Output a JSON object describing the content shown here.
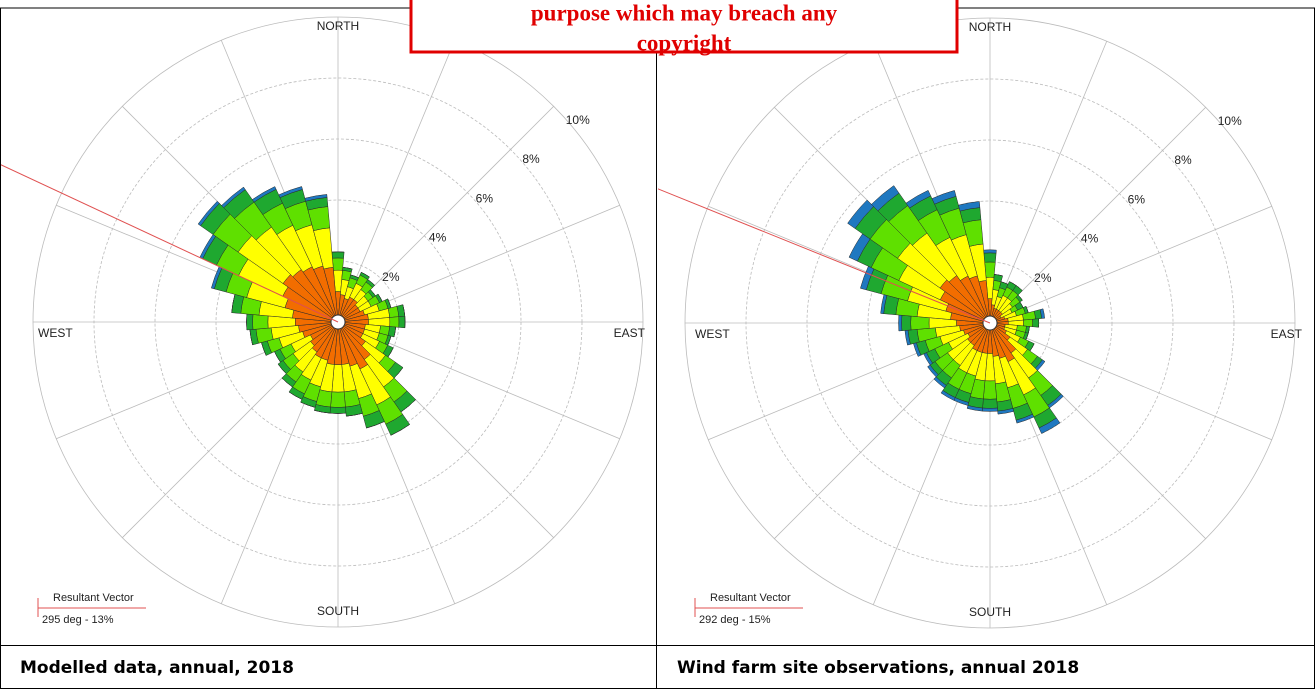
{
  "watermark": [
    "purpose which may breach any",
    "copyright"
  ],
  "chart_data": [
    {
      "type": "wind_rose",
      "caption": "Modelled data, annual, 2018",
      "cardinals": [
        "NORTH",
        "EAST",
        "SOUTH",
        "WEST"
      ],
      "directions": [
        0,
        10,
        20,
        30,
        40,
        50,
        60,
        70,
        80,
        90,
        100,
        110,
        120,
        130,
        140,
        150,
        160,
        170,
        180,
        190,
        200,
        210,
        220,
        230,
        240,
        250,
        260,
        270,
        280,
        290,
        300,
        310,
        320,
        330,
        340,
        350
      ],
      "rlim": [
        0,
        10
      ],
      "rticks": [
        {
          "value": 2,
          "label": "2%"
        },
        {
          "value": 4,
          "label": "4%"
        },
        {
          "value": 6,
          "label": "6%"
        },
        {
          "value": 8,
          "label": "8%"
        },
        {
          "value": 10,
          "label": "10%"
        }
      ],
      "series": [
        {
          "color": "#f26d00",
          "values": [
            1.0,
            0.9,
            0.8,
            0.9,
            0.9,
            0.8,
            0.8,
            0.9,
            1.0,
            1.0,
            0.9,
            0.9,
            0.9,
            1.1,
            1.5,
            1.7,
            1.5,
            1.4,
            1.4,
            1.4,
            1.3,
            1.3,
            1.2,
            1.1,
            1.0,
            1.2,
            1.3,
            1.4,
            1.5,
            1.8,
            2.0,
            2.2,
            2.1,
            2.0,
            1.9,
            1.8
          ]
        },
        {
          "color": "#ffff00",
          "values": [
            0.7,
            0.5,
            0.4,
            0.5,
            0.4,
            0.4,
            0.4,
            0.5,
            0.7,
            0.7,
            0.5,
            0.5,
            0.6,
            0.8,
            1.1,
            1.3,
            1.1,
            0.9,
            0.9,
            0.9,
            0.9,
            0.8,
            0.8,
            0.7,
            0.7,
            0.8,
            0.9,
            0.9,
            1.1,
            1.3,
            1.6,
            1.8,
            1.7,
            1.5,
            1.4,
            1.3
          ]
        },
        {
          "color": "#5fe000",
          "values": [
            0.4,
            0.3,
            0.3,
            0.3,
            0.3,
            0.2,
            0.3,
            0.3,
            0.3,
            0.3,
            0.3,
            0.3,
            0.3,
            0.4,
            0.6,
            0.7,
            0.6,
            0.5,
            0.5,
            0.5,
            0.5,
            0.5,
            0.4,
            0.4,
            0.4,
            0.4,
            0.5,
            0.5,
            0.6,
            0.7,
            0.8,
            1.0,
            1.0,
            0.8,
            0.8,
            0.7
          ]
        },
        {
          "color": "#1fa830",
          "values": [
            0.2,
            0.1,
            0.1,
            0.1,
            0.1,
            0.1,
            0.1,
            0.1,
            0.2,
            0.2,
            0.2,
            0.1,
            0.2,
            0.3,
            0.4,
            0.4,
            0.4,
            0.3,
            0.2,
            0.2,
            0.2,
            0.2,
            0.2,
            0.2,
            0.2,
            0.2,
            0.2,
            0.2,
            0.3,
            0.4,
            0.5,
            0.5,
            0.5,
            0.5,
            0.4,
            0.3
          ]
        },
        {
          "color": "#1f78c0",
          "values": [
            0,
            0,
            0,
            0,
            0,
            0,
            0,
            0,
            0,
            0,
            0,
            0,
            0,
            0,
            0,
            0,
            0,
            0,
            0,
            0,
            0,
            0,
            0,
            0,
            0,
            0,
            0,
            0,
            0,
            0.1,
            0.1,
            0.1,
            0.1,
            0.1,
            0.1,
            0.1
          ]
        }
      ],
      "resultant": {
        "label": "Resultant Vector",
        "direction": 295,
        "magnitude": 13,
        "value_label": "295 deg - 13%"
      }
    },
    {
      "type": "wind_rose",
      "caption": "Wind farm site observations, annual 2018",
      "cardinals": [
        "NORTH",
        "EAST",
        "SOUTH",
        "WEST"
      ],
      "directions": [
        0,
        10,
        20,
        30,
        40,
        50,
        60,
        70,
        80,
        90,
        100,
        110,
        120,
        130,
        140,
        150,
        160,
        170,
        180,
        190,
        200,
        210,
        220,
        230,
        240,
        250,
        260,
        270,
        280,
        290,
        300,
        310,
        320,
        330,
        340,
        350
      ],
      "rlim": [
        0,
        10
      ],
      "rticks": [
        {
          "value": 2,
          "label": "2%"
        },
        {
          "value": 4,
          "label": "4%"
        },
        {
          "value": 6,
          "label": "6%"
        },
        {
          "value": 8,
          "label": "8%"
        },
        {
          "value": 10,
          "label": "10%"
        }
      ],
      "series": [
        {
          "color": "#f26d00",
          "values": [
            0.8,
            0.6,
            0.5,
            0.5,
            0.5,
            0.5,
            0.4,
            0.5,
            0.6,
            0.6,
            0.5,
            0.5,
            0.6,
            0.8,
            1.2,
            1.4,
            1.2,
            1.1,
            1.0,
            1.0,
            1.0,
            1.0,
            0.9,
            0.9,
            0.8,
            0.9,
            1.0,
            1.1,
            1.3,
            1.5,
            1.8,
            2.0,
            1.9,
            1.7,
            1.6,
            1.4
          ]
        },
        {
          "color": "#ffff00",
          "values": [
            0.7,
            0.5,
            0.4,
            0.5,
            0.5,
            0.4,
            0.4,
            0.4,
            0.5,
            0.5,
            0.4,
            0.4,
            0.5,
            0.7,
            1.0,
            1.2,
            1.0,
            0.9,
            0.9,
            0.9,
            0.8,
            0.8,
            0.8,
            0.8,
            0.7,
            0.8,
            0.8,
            0.9,
            1.1,
            1.3,
            1.5,
            1.7,
            1.7,
            1.4,
            1.4,
            1.2
          ]
        },
        {
          "color": "#5fe000",
          "values": [
            0.5,
            0.3,
            0.3,
            0.3,
            0.3,
            0.3,
            0.2,
            0.3,
            0.4,
            0.3,
            0.3,
            0.3,
            0.3,
            0.4,
            0.7,
            0.8,
            0.7,
            0.6,
            0.6,
            0.6,
            0.6,
            0.6,
            0.5,
            0.5,
            0.5,
            0.5,
            0.6,
            0.6,
            0.7,
            0.9,
            1.0,
            1.1,
            1.1,
            1.0,
            0.9,
            0.8
          ]
        },
        {
          "color": "#1fa830",
          "values": [
            0.3,
            0.2,
            0.2,
            0.2,
            0.2,
            0.1,
            0.2,
            0.1,
            0.2,
            0.2,
            0.1,
            0.1,
            0.2,
            0.2,
            0.4,
            0.4,
            0.4,
            0.3,
            0.3,
            0.3,
            0.3,
            0.3,
            0.3,
            0.2,
            0.3,
            0.3,
            0.3,
            0.3,
            0.4,
            0.5,
            0.5,
            0.6,
            0.5,
            0.5,
            0.4,
            0.4
          ]
        },
        {
          "color": "#1f78c0",
          "values": [
            0.1,
            0,
            0,
            0,
            0,
            0,
            0,
            0,
            0.1,
            0,
            0,
            0,
            0,
            0.1,
            0.1,
            0.2,
            0.1,
            0.1,
            0.1,
            0.1,
            0.1,
            0.1,
            0.1,
            0.1,
            0.1,
            0.1,
            0.1,
            0.1,
            0.1,
            0.2,
            0.3,
            0.3,
            0.3,
            0.2,
            0.2,
            0.2
          ]
        }
      ],
      "resultant": {
        "label": "Resultant Vector",
        "direction": 292,
        "magnitude": 15,
        "value_label": "292 deg - 15%"
      }
    }
  ]
}
